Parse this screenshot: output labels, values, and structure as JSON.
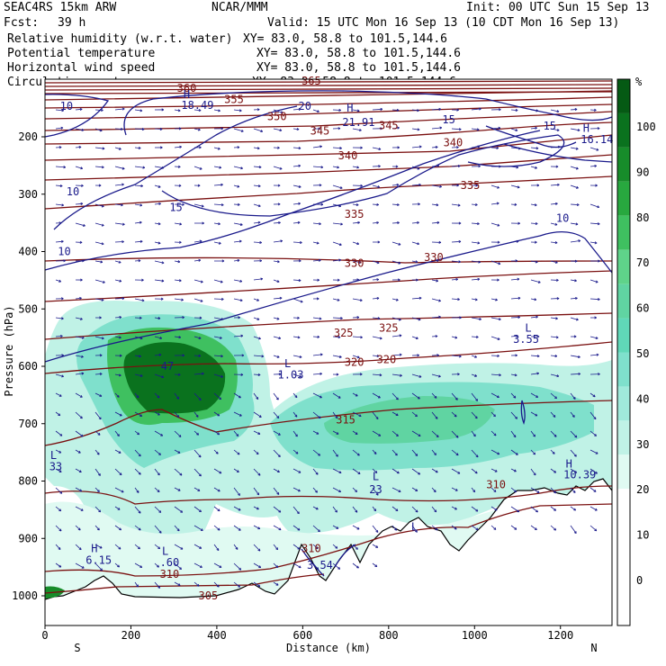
{
  "header": {
    "model": "SEAC4RS 15km ARW",
    "org": "NCAR/MMM",
    "init": "Init: 00 UTC Sun 15 Sep 13",
    "fcst_label": "Fcst:",
    "fcst_value": "39 h",
    "valid": "Valid: 15 UTC Mon 16 Sep 13 (10 CDT Mon 16 Sep 13)",
    "fields": [
      {
        "label": "Relative humidity (w.r.t. water)",
        "xy": "XY= 83.0, 58.8 to 101.5,144.6",
        "color": "#000000"
      },
      {
        "label": "Potential temperature",
        "xy": "XY= 83.0, 58.8 to 101.5,144.6",
        "color": "#8b1a1a"
      },
      {
        "label": "Horizontal wind speed",
        "xy": "XY= 83.0, 58.8 to 101.5,144.6",
        "color": "#1a1a8b"
      },
      {
        "label": "Circulation vectors",
        "xy": "XY= 83.0, 58.8 to 101.5,144.6",
        "color": "#1a1a8b"
      }
    ]
  },
  "colorbar": {
    "unit": "%",
    "ticks": [
      "100",
      "90",
      "80",
      "70",
      "60",
      "50",
      "40",
      "30",
      "20",
      "10",
      "0"
    ],
    "colors": [
      "#ffffff",
      "#ffffff",
      "#ffffff",
      "#ffffff",
      "#e0faf2",
      "#c0f2e6",
      "#a0eadb",
      "#7fe0cc",
      "#60d8b8",
      "#60d4a2",
      "#5fd38a",
      "#3fc060",
      "#28a83f",
      "#178c2a",
      "#0a721e",
      "#055a14"
    ]
  },
  "chart_data": {
    "type": "cross-section",
    "xlabel": "Distance (km)",
    "ylabel": "Pressure (hPa)",
    "xlim": [
      0,
      1320
    ],
    "ylim": [
      1050,
      80
    ],
    "x_ticks": [
      "0",
      "200",
      "400",
      "600",
      "800",
      "1000",
      "1200"
    ],
    "y_ticks": [
      "200",
      "300",
      "400",
      "500",
      "600",
      "700",
      "800",
      "900",
      "1000"
    ],
    "x_end_labels": {
      "left": "S",
      "right": "N"
    },
    "theta_labels": [
      {
        "x": 330,
        "p": 115,
        "text": "360"
      },
      {
        "x": 620,
        "p": 103,
        "text": "365"
      },
      {
        "x": 440,
        "p": 135,
        "text": "355"
      },
      {
        "x": 540,
        "p": 165,
        "text": "350"
      },
      {
        "x": 800,
        "p": 180,
        "text": "345"
      },
      {
        "x": 640,
        "p": 190,
        "text": "345"
      },
      {
        "x": 705,
        "p": 233,
        "text": "340"
      },
      {
        "x": 950,
        "p": 210,
        "text": "340"
      },
      {
        "x": 990,
        "p": 285,
        "text": "335"
      },
      {
        "x": 720,
        "p": 335,
        "text": "335"
      },
      {
        "x": 720,
        "p": 420,
        "text": "330"
      },
      {
        "x": 905,
        "p": 410,
        "text": "330"
      },
      {
        "x": 695,
        "p": 542,
        "text": "325"
      },
      {
        "x": 800,
        "p": 533,
        "text": "325"
      },
      {
        "x": 720,
        "p": 593,
        "text": "320"
      },
      {
        "x": 795,
        "p": 588,
        "text": "320"
      },
      {
        "x": 700,
        "p": 693,
        "text": "315"
      },
      {
        "x": 1050,
        "p": 806,
        "text": "310"
      },
      {
        "x": 620,
        "p": 918,
        "text": "310"
      },
      {
        "x": 290,
        "p": 962,
        "text": "310"
      },
      {
        "x": 380,
        "p": 1000,
        "text": "305"
      }
    ],
    "wind_labels": [
      {
        "x": 50,
        "p": 147,
        "text": "10"
      },
      {
        "x": 605,
        "p": 147,
        "text": "20"
      },
      {
        "x": 940,
        "p": 170,
        "text": "15"
      },
      {
        "x": 1175,
        "p": 181,
        "text": "15"
      },
      {
        "x": 65,
        "p": 296,
        "text": "10"
      },
      {
        "x": 305,
        "p": 323,
        "text": "15"
      },
      {
        "x": 1205,
        "p": 342,
        "text": "10"
      },
      {
        "x": 45,
        "p": 400,
        "text": "10"
      }
    ],
    "extrema": [
      {
        "x": 330,
        "p": 126,
        "type": "H",
        "value": ""
      },
      {
        "x": 355,
        "p": 145,
        "type": "",
        "value": "18.49"
      },
      {
        "x": 710,
        "p": 150,
        "type": "H",
        "value": ""
      },
      {
        "x": 730,
        "p": 175,
        "type": "",
        "value": "21.91"
      },
      {
        "x": 1260,
        "p": 185,
        "type": "H",
        "value": ""
      },
      {
        "x": 1285,
        "p": 205,
        "type": "",
        "value": "16.14"
      },
      {
        "x": 1125,
        "p": 533,
        "type": "L",
        "value": ""
      },
      {
        "x": 1120,
        "p": 553,
        "type": "",
        "value": "3.55"
      },
      {
        "x": 565,
        "p": 595,
        "type": "L",
        "value": ""
      },
      {
        "x": 572,
        "p": 615,
        "type": "",
        "value": "1.03"
      },
      {
        "x": 285,
        "p": 600,
        "type": "",
        "value": "47"
      },
      {
        "x": 1220,
        "p": 770,
        "type": "H",
        "value": ""
      },
      {
        "x": 1245,
        "p": 789,
        "type": "",
        "value": "10.39"
      },
      {
        "x": 770,
        "p": 792,
        "type": "L",
        "value": ""
      },
      {
        "x": 770,
        "p": 815,
        "type": "",
        "value": "23"
      },
      {
        "x": 20,
        "p": 755,
        "type": "L",
        "value": ""
      },
      {
        "x": 25,
        "p": 775,
        "type": "",
        "value": "33"
      },
      {
        "x": 115,
        "p": 918,
        "type": "H",
        "value": ""
      },
      {
        "x": 125,
        "p": 938,
        "type": "",
        "value": "6.15"
      },
      {
        "x": 280,
        "p": 922,
        "type": "L",
        "value": ""
      },
      {
        "x": 290,
        "p": 942,
        "type": "",
        "value": ".60"
      },
      {
        "x": 860,
        "p": 880,
        "type": "L",
        "value": ""
      },
      {
        "x": 640,
        "p": 947,
        "type": "",
        "value": "3.54"
      }
    ]
  }
}
